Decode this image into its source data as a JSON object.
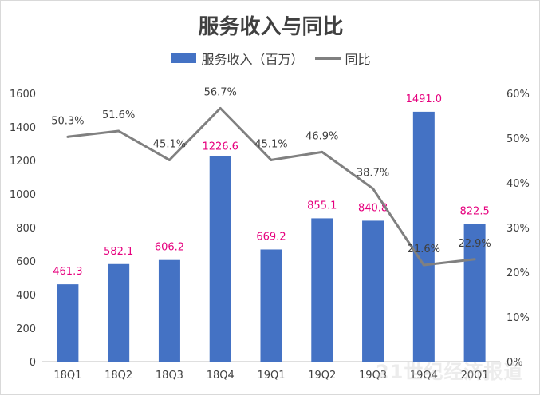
{
  "chart_data": {
    "type": "bar",
    "title": "服务收入与同比",
    "categories": [
      "18Q1",
      "18Q2",
      "18Q3",
      "18Q4",
      "19Q1",
      "19Q2",
      "19Q3",
      "19Q4",
      "20Q1"
    ],
    "series": [
      {
        "name": "服务收入（百万）",
        "type": "bar",
        "axis": "left",
        "values": [
          461.3,
          582.1,
          606.2,
          1226.6,
          669.2,
          855.1,
          840.8,
          1491.0,
          822.5
        ],
        "labels": [
          "461.3",
          "582.1",
          "606.2",
          "1226.6",
          "669.2",
          "855.1",
          "840.8",
          "1491.0",
          "822.5"
        ]
      },
      {
        "name": "同比",
        "type": "line",
        "axis": "right",
        "values": [
          50.3,
          51.6,
          45.1,
          56.7,
          45.1,
          46.9,
          38.7,
          21.6,
          22.9
        ],
        "labels": [
          "50.3%",
          "51.6%",
          "45.1%",
          "56.7%",
          "45.1%",
          "46.9%",
          "38.7%",
          "21.6%",
          "22.9%"
        ]
      }
    ],
    "ylim_left": [
      0,
      1600
    ],
    "ylim_right": [
      0,
      60
    ],
    "left_ticks": [
      "0",
      "200",
      "400",
      "600",
      "800",
      "1000",
      "1200",
      "1400",
      "1600"
    ],
    "right_ticks": [
      "0%",
      "10%",
      "20%",
      "30%",
      "40%",
      "50%",
      "60%"
    ],
    "legend_position": "top",
    "grid": false
  },
  "colors": {
    "bar": "#4472c4",
    "line": "#808080",
    "bar_label": "#e6007e",
    "text": "#404040"
  },
  "watermark": {
    "text": "21世纪经济报道"
  }
}
